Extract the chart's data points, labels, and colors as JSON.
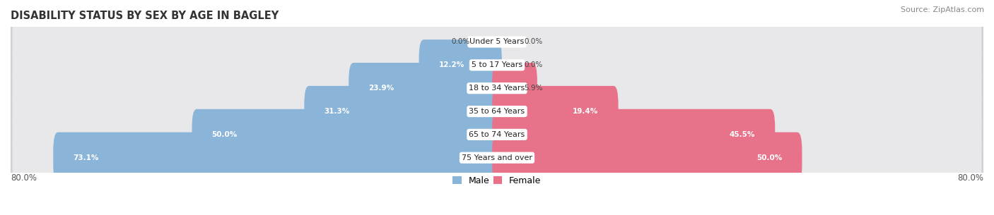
{
  "title": "DISABILITY STATUS BY SEX BY AGE IN BAGLEY",
  "source": "Source: ZipAtlas.com",
  "categories": [
    "Under 5 Years",
    "5 to 17 Years",
    "18 to 34 Years",
    "35 to 64 Years",
    "65 to 74 Years",
    "75 Years and over"
  ],
  "male_values": [
    0.0,
    12.2,
    23.9,
    31.3,
    50.0,
    73.1
  ],
  "female_values": [
    0.0,
    0.0,
    5.9,
    19.4,
    45.5,
    50.0
  ],
  "male_color": "#8ab4d8",
  "female_color": "#e8728a",
  "row_bg_color": "#e8e8eb",
  "row_border_color": "#d0d0d5",
  "max_value": 80.0,
  "legend_male": "Male",
  "legend_female": "Female",
  "title_fontsize": 10.5,
  "source_fontsize": 8,
  "label_fontsize": 8.5,
  "category_fontsize": 8,
  "value_fontsize": 7.5
}
